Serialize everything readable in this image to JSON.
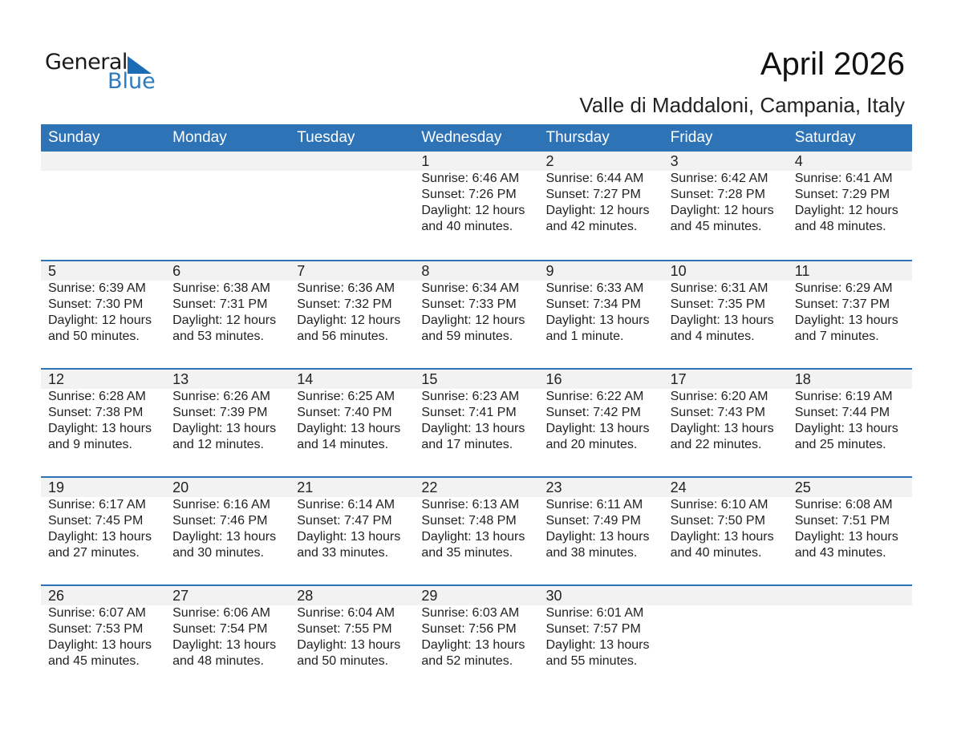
{
  "logo": {
    "general": "General",
    "blue": "Blue"
  },
  "title": "April 2026",
  "location": "Valle di Maddaloni, Campania, Italy",
  "days": [
    "Sunday",
    "Monday",
    "Tuesday",
    "Wednesday",
    "Thursday",
    "Friday",
    "Saturday"
  ],
  "weeks": [
    [
      null,
      null,
      null,
      {
        "date": "1",
        "sunrise": "Sunrise: 6:46 AM",
        "sunset": "Sunset: 7:26 PM",
        "d1": "Daylight: 12 hours",
        "d2": "and 40 minutes."
      },
      {
        "date": "2",
        "sunrise": "Sunrise: 6:44 AM",
        "sunset": "Sunset: 7:27 PM",
        "d1": "Daylight: 12 hours",
        "d2": "and 42 minutes."
      },
      {
        "date": "3",
        "sunrise": "Sunrise: 6:42 AM",
        "sunset": "Sunset: 7:28 PM",
        "d1": "Daylight: 12 hours",
        "d2": "and 45 minutes."
      },
      {
        "date": "4",
        "sunrise": "Sunrise: 6:41 AM",
        "sunset": "Sunset: 7:29 PM",
        "d1": "Daylight: 12 hours",
        "d2": "and 48 minutes."
      }
    ],
    [
      {
        "date": "5",
        "sunrise": "Sunrise: 6:39 AM",
        "sunset": "Sunset: 7:30 PM",
        "d1": "Daylight: 12 hours",
        "d2": "and 50 minutes."
      },
      {
        "date": "6",
        "sunrise": "Sunrise: 6:38 AM",
        "sunset": "Sunset: 7:31 PM",
        "d1": "Daylight: 12 hours",
        "d2": "and 53 minutes."
      },
      {
        "date": "7",
        "sunrise": "Sunrise: 6:36 AM",
        "sunset": "Sunset: 7:32 PM",
        "d1": "Daylight: 12 hours",
        "d2": "and 56 minutes."
      },
      {
        "date": "8",
        "sunrise": "Sunrise: 6:34 AM",
        "sunset": "Sunset: 7:33 PM",
        "d1": "Daylight: 12 hours",
        "d2": "and 59 minutes."
      },
      {
        "date": "9",
        "sunrise": "Sunrise: 6:33 AM",
        "sunset": "Sunset: 7:34 PM",
        "d1": "Daylight: 13 hours",
        "d2": "and 1 minute."
      },
      {
        "date": "10",
        "sunrise": "Sunrise: 6:31 AM",
        "sunset": "Sunset: 7:35 PM",
        "d1": "Daylight: 13 hours",
        "d2": "and 4 minutes."
      },
      {
        "date": "11",
        "sunrise": "Sunrise: 6:29 AM",
        "sunset": "Sunset: 7:37 PM",
        "d1": "Daylight: 13 hours",
        "d2": "and 7 minutes."
      }
    ],
    [
      {
        "date": "12",
        "sunrise": "Sunrise: 6:28 AM",
        "sunset": "Sunset: 7:38 PM",
        "d1": "Daylight: 13 hours",
        "d2": "and 9 minutes."
      },
      {
        "date": "13",
        "sunrise": "Sunrise: 6:26 AM",
        "sunset": "Sunset: 7:39 PM",
        "d1": "Daylight: 13 hours",
        "d2": "and 12 minutes."
      },
      {
        "date": "14",
        "sunrise": "Sunrise: 6:25 AM",
        "sunset": "Sunset: 7:40 PM",
        "d1": "Daylight: 13 hours",
        "d2": "and 14 minutes."
      },
      {
        "date": "15",
        "sunrise": "Sunrise: 6:23 AM",
        "sunset": "Sunset: 7:41 PM",
        "d1": "Daylight: 13 hours",
        "d2": "and 17 minutes."
      },
      {
        "date": "16",
        "sunrise": "Sunrise: 6:22 AM",
        "sunset": "Sunset: 7:42 PM",
        "d1": "Daylight: 13 hours",
        "d2": "and 20 minutes."
      },
      {
        "date": "17",
        "sunrise": "Sunrise: 6:20 AM",
        "sunset": "Sunset: 7:43 PM",
        "d1": "Daylight: 13 hours",
        "d2": "and 22 minutes."
      },
      {
        "date": "18",
        "sunrise": "Sunrise: 6:19 AM",
        "sunset": "Sunset: 7:44 PM",
        "d1": "Daylight: 13 hours",
        "d2": "and 25 minutes."
      }
    ],
    [
      {
        "date": "19",
        "sunrise": "Sunrise: 6:17 AM",
        "sunset": "Sunset: 7:45 PM",
        "d1": "Daylight: 13 hours",
        "d2": "and 27 minutes."
      },
      {
        "date": "20",
        "sunrise": "Sunrise: 6:16 AM",
        "sunset": "Sunset: 7:46 PM",
        "d1": "Daylight: 13 hours",
        "d2": "and 30 minutes."
      },
      {
        "date": "21",
        "sunrise": "Sunrise: 6:14 AM",
        "sunset": "Sunset: 7:47 PM",
        "d1": "Daylight: 13 hours",
        "d2": "and 33 minutes."
      },
      {
        "date": "22",
        "sunrise": "Sunrise: 6:13 AM",
        "sunset": "Sunset: 7:48 PM",
        "d1": "Daylight: 13 hours",
        "d2": "and 35 minutes."
      },
      {
        "date": "23",
        "sunrise": "Sunrise: 6:11 AM",
        "sunset": "Sunset: 7:49 PM",
        "d1": "Daylight: 13 hours",
        "d2": "and 38 minutes."
      },
      {
        "date": "24",
        "sunrise": "Sunrise: 6:10 AM",
        "sunset": "Sunset: 7:50 PM",
        "d1": "Daylight: 13 hours",
        "d2": "and 40 minutes."
      },
      {
        "date": "25",
        "sunrise": "Sunrise: 6:08 AM",
        "sunset": "Sunset: 7:51 PM",
        "d1": "Daylight: 13 hours",
        "d2": "and 43 minutes."
      }
    ],
    [
      {
        "date": "26",
        "sunrise": "Sunrise: 6:07 AM",
        "sunset": "Sunset: 7:53 PM",
        "d1": "Daylight: 13 hours",
        "d2": "and 45 minutes."
      },
      {
        "date": "27",
        "sunrise": "Sunrise: 6:06 AM",
        "sunset": "Sunset: 7:54 PM",
        "d1": "Daylight: 13 hours",
        "d2": "and 48 minutes."
      },
      {
        "date": "28",
        "sunrise": "Sunrise: 6:04 AM",
        "sunset": "Sunset: 7:55 PM",
        "d1": "Daylight: 13 hours",
        "d2": "and 50 minutes."
      },
      {
        "date": "29",
        "sunrise": "Sunrise: 6:03 AM",
        "sunset": "Sunset: 7:56 PM",
        "d1": "Daylight: 13 hours",
        "d2": "and 52 minutes."
      },
      {
        "date": "30",
        "sunrise": "Sunrise: 6:01 AM",
        "sunset": "Sunset: 7:57 PM",
        "d1": "Daylight: 13 hours",
        "d2": "and 55 minutes."
      },
      null,
      null
    ]
  ]
}
